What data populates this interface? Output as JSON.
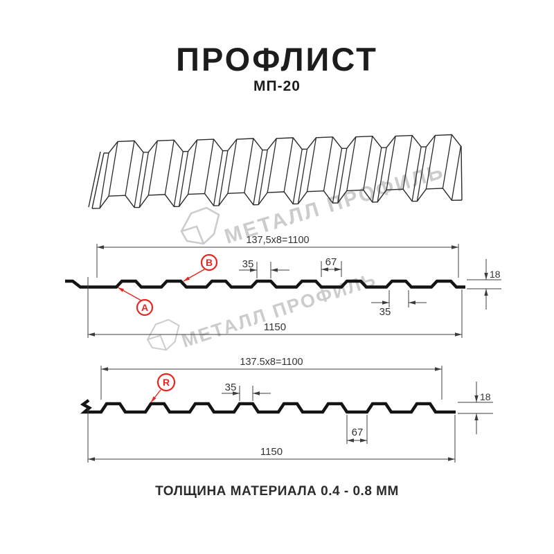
{
  "title": "ПРОФЛИСТ",
  "subtitle": "МП-20",
  "footer_note": "ТОЛЩИНА МАТЕРИАЛА 0.4 - 0.8 ММ",
  "watermark": {
    "text": "МЕТАЛЛ ПРОФИЛЬ"
  },
  "colors": {
    "profile_line": "#141414",
    "dim_line": "#3c3c3c",
    "thin_line": "#2a2a2a",
    "red_accent": "#e8251f",
    "watermark_gray": "#cccccc",
    "text_dark": "#1c1c1c"
  },
  "section_top": {
    "working_width": "137,5x8=1100",
    "overall_width": "1150",
    "rib_top_width": "35",
    "flange_width": "67",
    "profile_height": "18",
    "groove_width": "35",
    "marker_a": "A",
    "marker_b": "B"
  },
  "section_bottom": {
    "working_width": "137.5x8=1100",
    "overall_width": "1150",
    "rib_top_width": "35",
    "flange_width": "67",
    "profile_height": "18",
    "marker_r": "R"
  }
}
